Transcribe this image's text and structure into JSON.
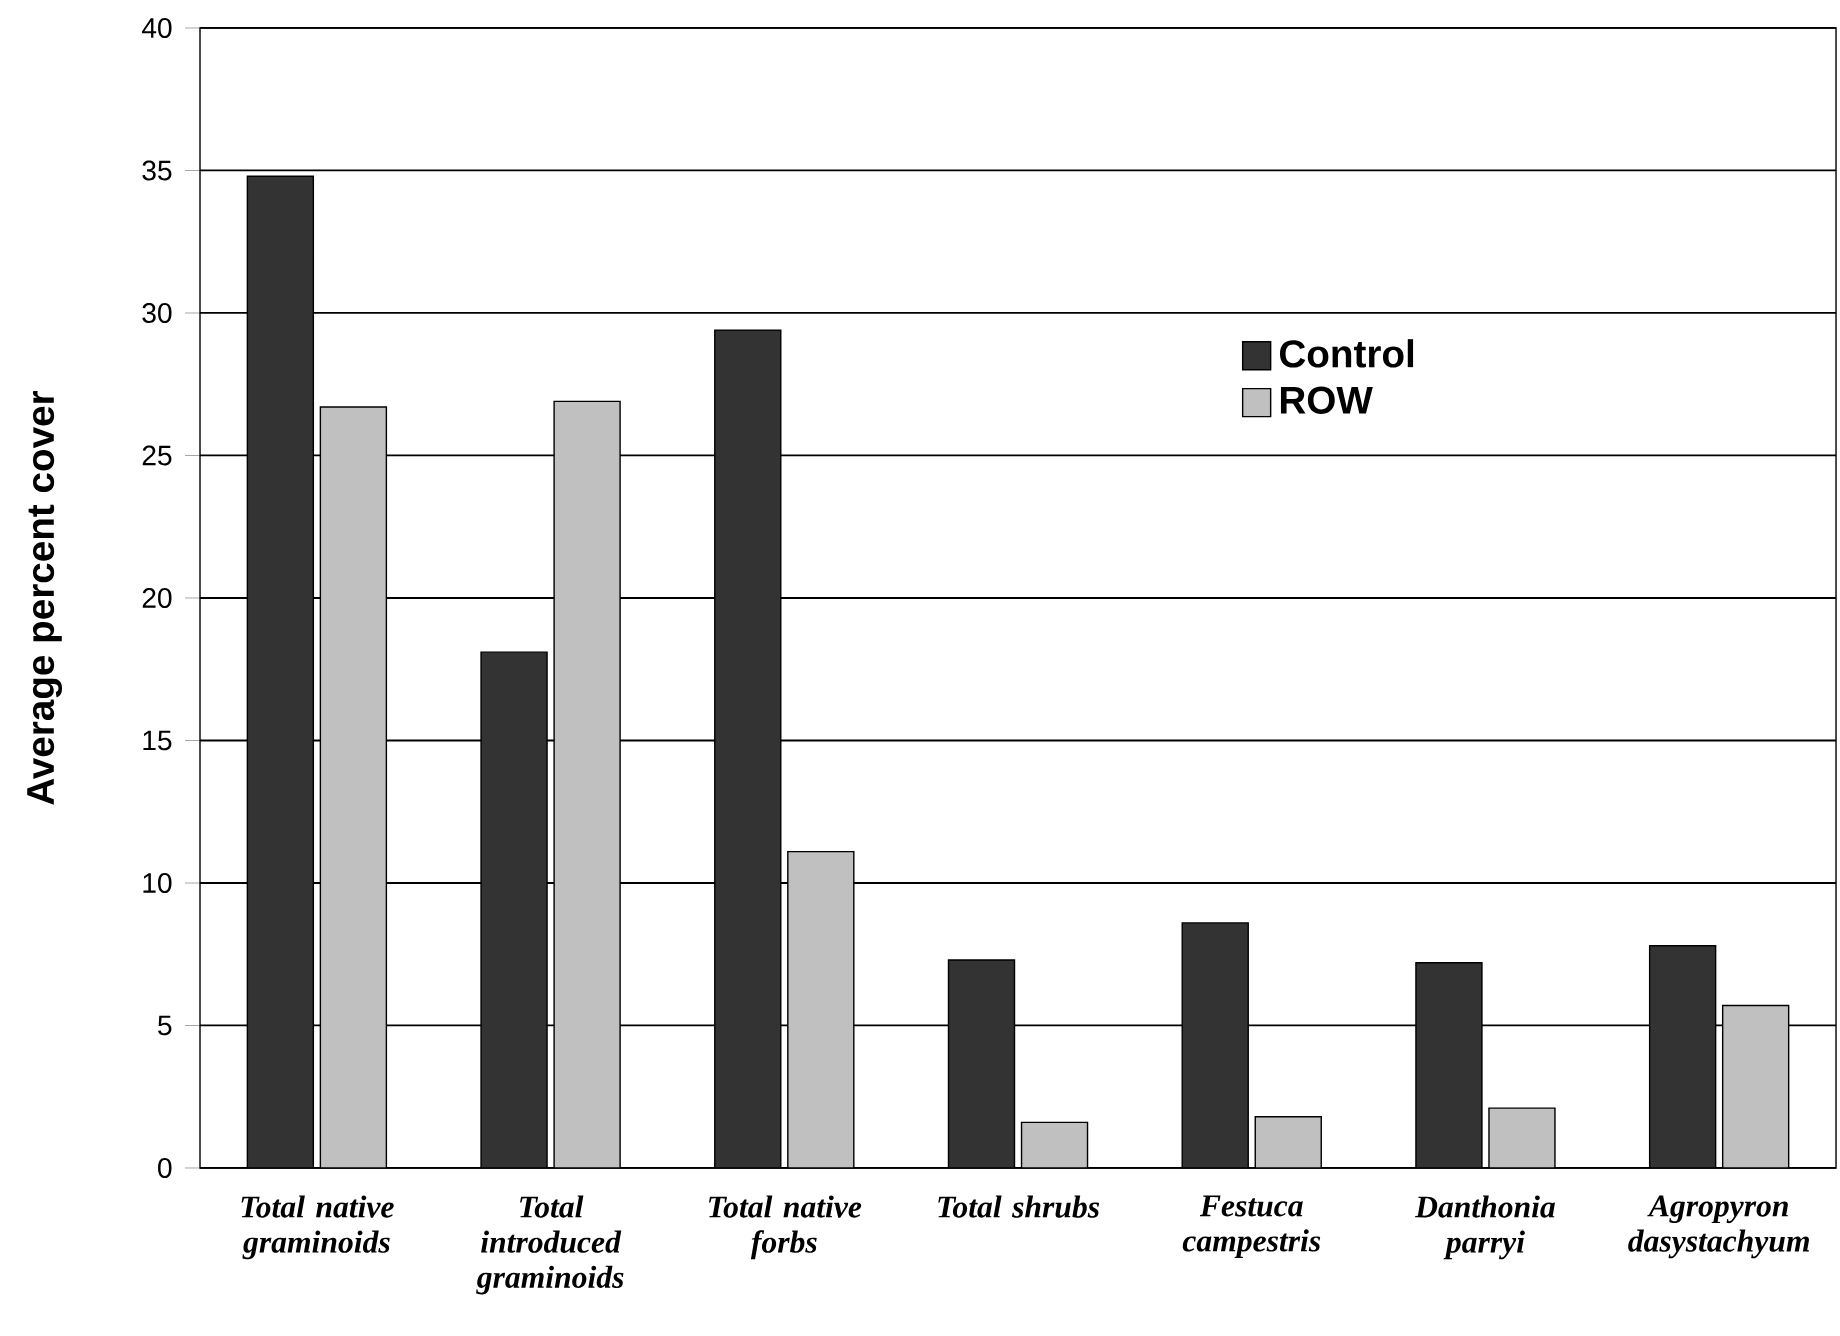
{
  "chart_data": {
    "type": "bar",
    "ylabel": "Average percent cover",
    "categories": [
      "Total native graminoids",
      "Total introduced graminoids",
      "Total native forbs",
      "Total shrubs",
      "Festuca campestris",
      "Danthonia parryi",
      "Agropyron dasystachyum"
    ],
    "series": [
      {
        "name": "Control",
        "color": "#333333",
        "values": [
          34.8,
          18.1,
          29.4,
          7.3,
          8.6,
          7.2,
          7.8
        ]
      },
      {
        "name": "ROW",
        "color": "#c0c0c0",
        "values": [
          26.7,
          26.9,
          11.1,
          1.6,
          1.8,
          2.1,
          5.7
        ]
      }
    ],
    "ylim": [
      0,
      40
    ],
    "yticks": [
      0,
      5,
      10,
      15,
      20,
      25,
      30,
      35,
      40
    ],
    "grid": "y",
    "legend": "top right"
  }
}
